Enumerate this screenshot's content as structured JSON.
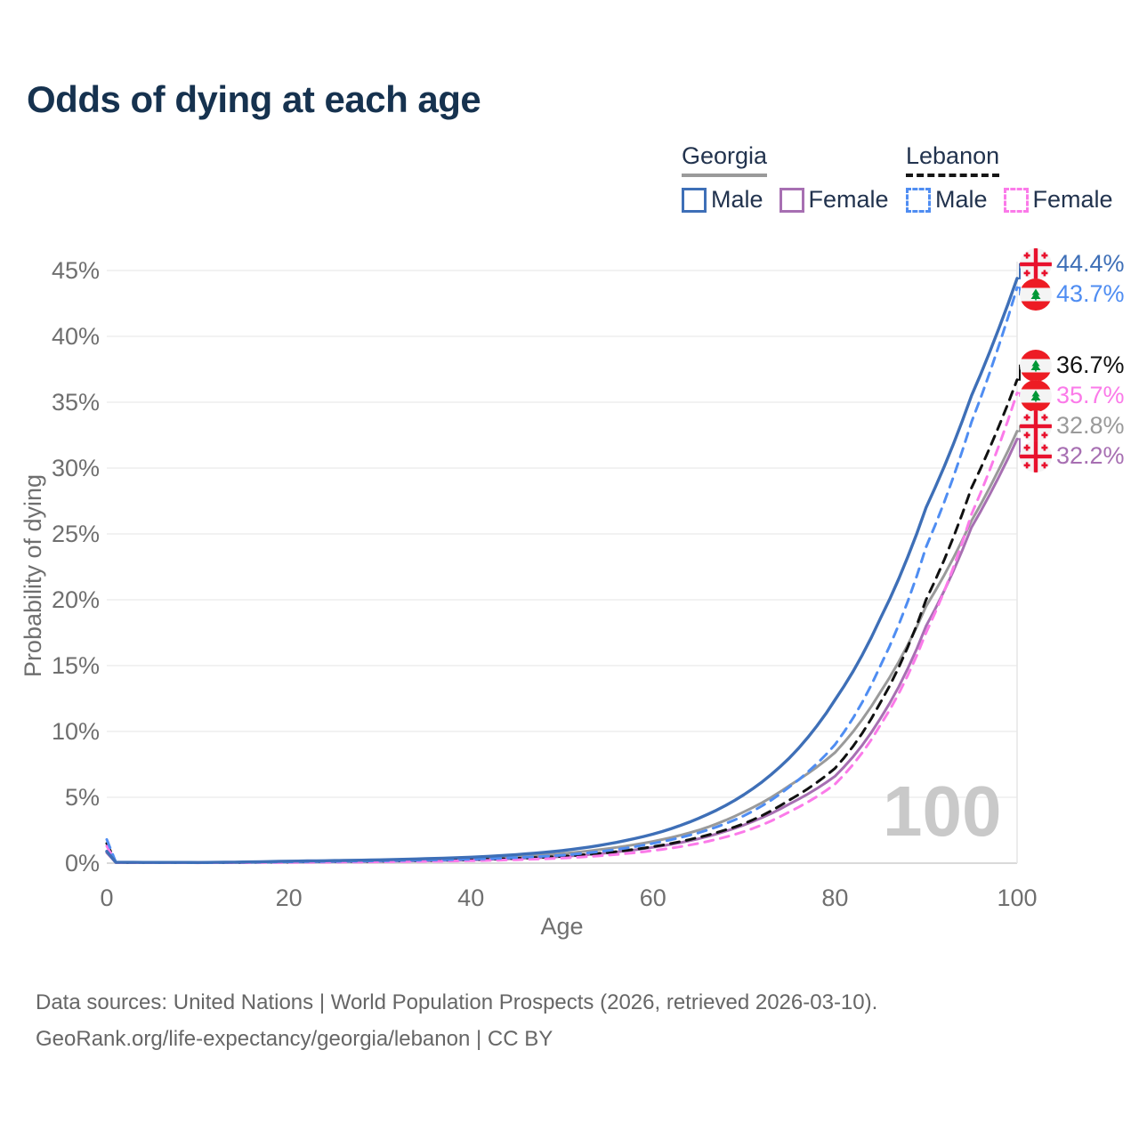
{
  "title": "Odds of dying at each age",
  "legend": {
    "groups": [
      {
        "country": "Georgia",
        "line_style": "solid",
        "underline_color": "#9a9a9a",
        "items": [
          {
            "label": "Male",
            "color": "#3e6fb7",
            "dashed": false
          },
          {
            "label": "Female",
            "color": "#a76fb2",
            "dashed": false
          }
        ]
      },
      {
        "country": "Lebanon",
        "line_style": "dashed",
        "underline_color": "#161616",
        "items": [
          {
            "label": "Male",
            "color": "#4f8df2",
            "dashed": true
          },
          {
            "label": "Female",
            "color": "#fb7ae9",
            "dashed": true
          }
        ]
      }
    ]
  },
  "watermark": "100",
  "footer": {
    "line1": "Data sources: United Nations | World Population Prospects (2026, retrieved 2026-03-10).",
    "line2": "GeoRank.org/life-expectancy/georgia/lebanon | CC BY"
  },
  "chart_data": {
    "type": "line",
    "title": "Odds of dying at each age",
    "xlabel": "Age",
    "ylabel": "Probability of dying",
    "xlim": [
      0,
      100
    ],
    "ylim": [
      0,
      45
    ],
    "grid": "horizontal",
    "xticks": {
      "values": [
        0,
        20,
        40,
        60,
        80,
        100
      ],
      "labels": [
        "0",
        "20",
        "40",
        "60",
        "80",
        "100"
      ]
    },
    "yticks": {
      "values": [
        0,
        5,
        10,
        15,
        20,
        25,
        30,
        35,
        40,
        45
      ],
      "labels": [
        "0%",
        "5%",
        "10%",
        "15%",
        "20%",
        "25%",
        "30%",
        "35%",
        "40%",
        "45%"
      ]
    },
    "x": [
      0,
      1,
      10,
      20,
      30,
      40,
      45,
      50,
      55,
      60,
      65,
      70,
      75,
      80,
      85,
      90,
      95,
      100
    ],
    "series": [
      {
        "name": "Georgia Male",
        "country": "Georgia",
        "sex": "Male",
        "color": "#3e6fb7",
        "dash": "solid",
        "flag": "georgia",
        "end_label": "44.4%",
        "values": [
          0.9,
          0.06,
          0.05,
          0.15,
          0.25,
          0.45,
          0.65,
          0.95,
          1.45,
          2.2,
          3.4,
          5.2,
          8.0,
          12.4,
          18.6,
          27.0,
          35.5,
          44.4
        ]
      },
      {
        "name": "Lebanon Male",
        "country": "Lebanon",
        "sex": "Male",
        "color": "#4f8df2",
        "dash": "dashed",
        "flag": "lebanon",
        "end_label": "43.7%",
        "values": [
          1.8,
          0.07,
          0.04,
          0.1,
          0.18,
          0.3,
          0.42,
          0.6,
          0.95,
          1.5,
          2.3,
          3.6,
          5.8,
          9.0,
          15.0,
          24.0,
          33.5,
          43.7
        ]
      },
      {
        "name": "Lebanon Both sexes",
        "country": "Lebanon",
        "sex": "Both",
        "color": "#111111",
        "dash": "dashed",
        "flag": "lebanon",
        "end_label": "36.7%",
        "values": [
          1.5,
          0.06,
          0.035,
          0.09,
          0.15,
          0.26,
          0.36,
          0.52,
          0.8,
          1.25,
          1.95,
          3.0,
          4.8,
          7.2,
          12.2,
          20.0,
          28.5,
          36.7
        ]
      },
      {
        "name": "Lebanon Female",
        "country": "Lebanon",
        "sex": "Female",
        "color": "#fb7ae9",
        "dash": "dashed",
        "flag": "lebanon",
        "end_label": "35.7%",
        "values": [
          1.3,
          0.05,
          0.03,
          0.06,
          0.1,
          0.18,
          0.26,
          0.38,
          0.6,
          0.95,
          1.5,
          2.4,
          3.9,
          6.0,
          10.5,
          17.5,
          26.5,
          35.7
        ]
      },
      {
        "name": "Georgia Both sexes",
        "country": "Georgia",
        "sex": "Both",
        "color": "#9a9a9a",
        "dash": "solid",
        "flag": "georgia",
        "end_label": "32.8%",
        "values": [
          0.85,
          0.05,
          0.045,
          0.12,
          0.2,
          0.35,
          0.5,
          0.72,
          1.1,
          1.65,
          2.5,
          3.9,
          5.9,
          8.4,
          13.0,
          19.5,
          26.0,
          32.8
        ]
      },
      {
        "name": "Georgia Female",
        "country": "Georgia",
        "sex": "Female",
        "color": "#a76fb2",
        "dash": "solid",
        "flag": "georgia",
        "end_label": "32.2%",
        "values": [
          0.8,
          0.04,
          0.04,
          0.08,
          0.13,
          0.24,
          0.35,
          0.5,
          0.78,
          1.2,
          1.85,
          2.9,
          4.5,
          6.6,
          11.0,
          18.0,
          25.5,
          32.2
        ]
      }
    ]
  }
}
